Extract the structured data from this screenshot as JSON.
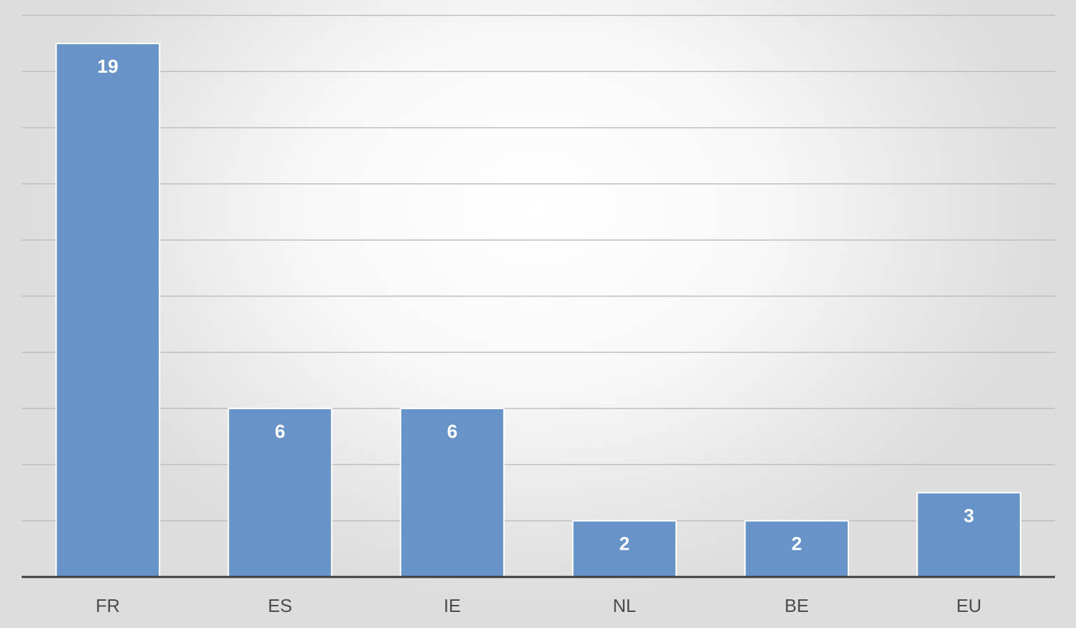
{
  "chart_data": {
    "type": "bar",
    "categories": [
      "FR",
      "ES",
      "IE",
      "NL",
      "BE",
      "EU"
    ],
    "values": [
      19,
      6,
      6,
      2,
      2,
      3
    ],
    "data_labels": [
      "19",
      "6",
      "6",
      "2",
      "2",
      "3"
    ],
    "title": "",
    "xlabel": "",
    "ylabel": "",
    "ylim": [
      0,
      20
    ],
    "ytick_step": 2,
    "grid": true,
    "legend": "none",
    "colors": {
      "bar": "#6793c8",
      "bar_outline": "#ffffff",
      "data_label": "#ffffff",
      "gridline": "#bdbdbd",
      "axis": "#3a3a3a",
      "tick_label": "#4a4a4a"
    }
  }
}
